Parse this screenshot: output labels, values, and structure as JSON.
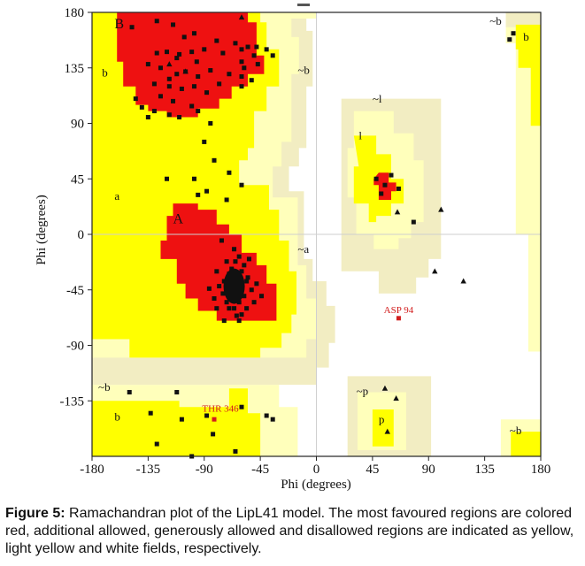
{
  "figure": {
    "caption_label": "Figure 5:",
    "caption_text": "Ramachandran plot of the LipL41 model. The most favoured regions are colored red, additional allowed, generously allowed and disallowed regions are indicated as yellow, light yellow and white fields, respectively."
  },
  "colors": {
    "most_favoured": "#ee1111",
    "additional_allowed": "#ffff00",
    "generously_allowed": "#ffffbb",
    "generously_allowed_edge": "#f2edc2",
    "disallowed": "#ffffff",
    "annotation": "#d21d1d"
  },
  "chart_data": {
    "type": "scatter",
    "xlabel": "Phi (degrees)",
    "ylabel": "Phi (degrees)",
    "xlim": [
      -180,
      180
    ],
    "ylim": [
      -180,
      180
    ],
    "xticks": [
      "-180",
      "-135",
      "-90",
      "-45",
      "0",
      "45",
      "90",
      "135",
      "180"
    ],
    "yticks": [
      "180",
      "135",
      "90",
      "45",
      "0",
      "-45",
      "-90",
      "-135"
    ],
    "region_labels": [
      {
        "text": "B",
        "x": -162,
        "y": 167
      },
      {
        "text": "b",
        "x": -172,
        "y": 128
      },
      {
        "text": "a",
        "x": -162,
        "y": 28
      },
      {
        "text": "A",
        "x": -115,
        "y": 9
      },
      {
        "text": "~b",
        "x": -15,
        "y": 130
      },
      {
        "text": "~l",
        "x": 45,
        "y": 107
      },
      {
        "text": "l",
        "x": 34,
        "y": 77
      },
      {
        "text": "~a",
        "x": -15,
        "y": -15
      },
      {
        "text": "~b",
        "x": 139,
        "y": 170
      },
      {
        "text": "b",
        "x": 166,
        "y": 157
      },
      {
        "text": "~b",
        "x": -175,
        "y": -127
      },
      {
        "text": "b",
        "x": -162,
        "y": -151
      },
      {
        "text": "~p",
        "x": 32,
        "y": -130
      },
      {
        "text": "p",
        "x": 50,
        "y": -153
      },
      {
        "text": "~b",
        "x": 155,
        "y": -162
      }
    ],
    "annotations": [
      {
        "text": "ASP 94",
        "x": 66,
        "y": -68
      },
      {
        "text": "THR 346",
        "x": -77,
        "y": -148
      }
    ],
    "series": [
      {
        "marker": "square",
        "points": [
          [
            -128,
            173
          ],
          [
            -115,
            170
          ],
          [
            -98,
            163
          ],
          [
            -148,
            168
          ],
          [
            -80,
            157
          ],
          [
            -65,
            155
          ],
          [
            -60,
            150
          ],
          [
            -55,
            152
          ],
          [
            -120,
            148
          ],
          [
            -110,
            146
          ],
          [
            -100,
            148
          ],
          [
            -90,
            150
          ],
          [
            -75,
            147
          ],
          [
            -60,
            140
          ],
          [
            -50,
            145
          ],
          [
            -47,
            138
          ],
          [
            -135,
            138
          ],
          [
            -125,
            135
          ],
          [
            -112,
            130
          ],
          [
            -105,
            132
          ],
          [
            -95,
            128
          ],
          [
            -85,
            133
          ],
          [
            -70,
            130
          ],
          [
            -58,
            135
          ],
          [
            -52,
            125
          ],
          [
            -60,
            120
          ],
          [
            -130,
            122
          ],
          [
            -118,
            120
          ],
          [
            -108,
            118
          ],
          [
            -98,
            120
          ],
          [
            -88,
            115
          ],
          [
            -78,
            122
          ],
          [
            -145,
            110
          ],
          [
            -140,
            103
          ],
          [
            -130,
            100
          ],
          [
            -118,
            97
          ],
          [
            -110,
            95
          ],
          [
            -100,
            104
          ],
          [
            -95,
            100
          ],
          [
            -115,
            108
          ],
          [
            -125,
            112
          ],
          [
            -135,
            95
          ],
          [
            -85,
            90
          ],
          [
            -90,
            75
          ],
          [
            -82,
            60
          ],
          [
            -70,
            50
          ],
          [
            -98,
            45
          ],
          [
            -120,
            45
          ],
          [
            -88,
            35
          ],
          [
            -60,
            40
          ],
          [
            -95,
            32
          ],
          [
            -72,
            28
          ],
          [
            -35,
            145
          ],
          [
            -48,
            152
          ],
          [
            -40,
            150
          ],
          [
            -60,
            128
          ],
          [
            -62,
            -18
          ],
          [
            -65,
            -22
          ],
          [
            -68,
            -28
          ],
          [
            -70,
            -32
          ],
          [
            -66,
            -36
          ],
          [
            -62,
            -40
          ],
          [
            -70,
            -42
          ],
          [
            -64,
            -46
          ],
          [
            -68,
            -50
          ],
          [
            -62,
            -55
          ],
          [
            -56,
            -60
          ],
          [
            -72,
            -55
          ],
          [
            -75,
            -48
          ],
          [
            -60,
            -30
          ],
          [
            -56,
            -38
          ],
          [
            -52,
            -45
          ],
          [
            -74,
            -38
          ],
          [
            -78,
            -42
          ],
          [
            -58,
            -50
          ],
          [
            -66,
            -60
          ],
          [
            -50,
            -55
          ],
          [
            -80,
            -30
          ],
          [
            -64,
            -66
          ],
          [
            -82,
            -52
          ],
          [
            -70,
            -60
          ],
          [
            -60,
            -65
          ],
          [
            -55,
            -35
          ],
          [
            -48,
            -40
          ],
          [
            -72,
            -22
          ],
          [
            -80,
            -60
          ],
          [
            -86,
            -44
          ],
          [
            -58,
            -25
          ],
          [
            -66,
            -12
          ],
          [
            -76,
            -5
          ],
          [
            -54,
            -20
          ],
          [
            -62,
            -70
          ],
          [
            -74,
            -70
          ],
          [
            -44,
            -50
          ],
          [
            52,
            33
          ],
          [
            60,
            48
          ],
          [
            55,
            40
          ],
          [
            66,
            37
          ],
          [
            48,
            45
          ],
          [
            78,
            10
          ],
          [
            -150,
            -128
          ],
          [
            -133,
            -145
          ],
          [
            -108,
            -150
          ],
          [
            -88,
            -147
          ],
          [
            -83,
            -162
          ],
          [
            -65,
            -176
          ],
          [
            -40,
            -147
          ],
          [
            -35,
            -150
          ],
          [
            -128,
            -170
          ],
          [
            -100,
            -180
          ],
          [
            -112,
            -128
          ],
          [
            -60,
            -140
          ],
          [
            158,
            163
          ],
          [
            155,
            158
          ],
          [
            -112,
            143
          ],
          [
            -128,
            147
          ],
          [
            -96,
            140
          ],
          [
            -106,
            160
          ],
          [
            -118,
            126
          ]
        ]
      },
      {
        "marker": "triangle",
        "points": [
          [
            -60,
            176
          ],
          [
            -105,
            132
          ],
          [
            -118,
            138
          ],
          [
            65,
            18
          ],
          [
            100,
            20
          ],
          [
            95,
            -30
          ],
          [
            118,
            -38
          ],
          [
            55,
            -125
          ],
          [
            57,
            -160
          ],
          [
            64,
            -133
          ]
        ]
      },
      {
        "marker": "square-red",
        "points": [
          [
            66,
            -68
          ],
          [
            -82,
            -150
          ]
        ]
      }
    ]
  }
}
